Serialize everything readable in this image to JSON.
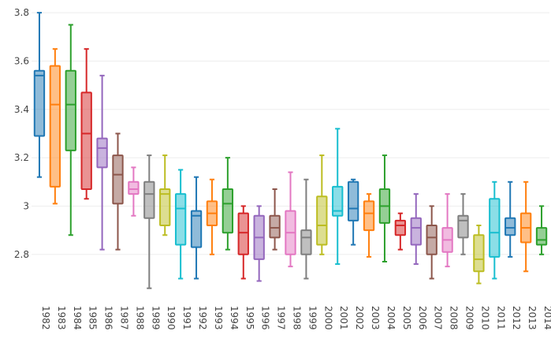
{
  "chart_data": {
    "type": "box",
    "title": "",
    "xlabel": "",
    "ylabel": "",
    "ylim": [
      2.62,
      3.82
    ],
    "yticks": [
      2.8,
      3,
      3.2,
      3.4,
      3.6,
      3.8
    ],
    "ytick_labels": [
      "2.8",
      "3",
      "3.2",
      "3.4",
      "3.6",
      "3.8"
    ],
    "grid": true,
    "legend": "none",
    "categories": [
      "1982",
      "1983",
      "1984",
      "1985",
      "1986",
      "1987",
      "1988",
      "1989",
      "1990",
      "1991",
      "1992",
      "1993",
      "1994",
      "1995",
      "1996",
      "1997",
      "1998",
      "1999",
      "2000",
      "2001",
      "2002",
      "2003",
      "2004",
      "2005",
      "2006",
      "2007",
      "2008",
      "2009",
      "2010",
      "2011",
      "2012",
      "2013",
      "2014"
    ],
    "colors": [
      "#1f77b4",
      "#ff7f0e",
      "#2ca02c",
      "#d62728",
      "#9467bd",
      "#8c564b",
      "#e377c2",
      "#7f7f7f",
      "#bcbd22",
      "#17becf"
    ],
    "boxes": [
      {
        "min": 3.12,
        "q1": 3.29,
        "median": 3.54,
        "q3": 3.56,
        "max": 3.8
      },
      {
        "min": 3.01,
        "q1": 3.08,
        "median": 3.42,
        "q3": 3.58,
        "max": 3.65
      },
      {
        "min": 2.88,
        "q1": 3.23,
        "median": 3.42,
        "q3": 3.56,
        "max": 3.75
      },
      {
        "min": 3.03,
        "q1": 3.07,
        "median": 3.3,
        "q3": 3.47,
        "max": 3.65
      },
      {
        "min": 2.82,
        "q1": 3.16,
        "median": 3.24,
        "q3": 3.28,
        "max": 3.54
      },
      {
        "min": 2.82,
        "q1": 3.01,
        "median": 3.13,
        "q3": 3.21,
        "max": 3.3
      },
      {
        "min": 2.96,
        "q1": 3.05,
        "median": 3.07,
        "q3": 3.1,
        "max": 3.16
      },
      {
        "min": 2.66,
        "q1": 2.95,
        "median": 3.05,
        "q3": 3.1,
        "max": 3.21
      },
      {
        "min": 2.88,
        "q1": 2.92,
        "median": 3.05,
        "q3": 3.07,
        "max": 3.21
      },
      {
        "min": 2.7,
        "q1": 2.84,
        "median": 2.99,
        "q3": 3.05,
        "max": 3.15
      },
      {
        "min": 2.7,
        "q1": 2.83,
        "median": 2.96,
        "q3": 2.98,
        "max": 3.12
      },
      {
        "min": 2.8,
        "q1": 2.92,
        "median": 2.97,
        "q3": 3.02,
        "max": 3.11
      },
      {
        "min": 2.82,
        "q1": 2.89,
        "median": 3.01,
        "q3": 3.07,
        "max": 3.2
      },
      {
        "min": 2.7,
        "q1": 2.8,
        "median": 2.89,
        "q3": 2.97,
        "max": 3.0
      },
      {
        "min": 2.69,
        "q1": 2.78,
        "median": 2.87,
        "q3": 2.96,
        "max": 3.0
      },
      {
        "min": 2.82,
        "q1": 2.87,
        "median": 2.91,
        "q3": 2.96,
        "max": 3.07
      },
      {
        "min": 2.75,
        "q1": 2.8,
        "median": 2.89,
        "q3": 2.98,
        "max": 3.14
      },
      {
        "min": 2.7,
        "q1": 2.8,
        "median": 2.87,
        "q3": 2.9,
        "max": 3.11
      },
      {
        "min": 2.8,
        "q1": 2.84,
        "median": 2.92,
        "q3": 3.04,
        "max": 3.21
      },
      {
        "min": 2.76,
        "q1": 2.96,
        "median": 2.98,
        "q3": 3.08,
        "max": 3.32
      },
      {
        "min": 2.84,
        "q1": 2.94,
        "median": 2.99,
        "q3": 3.1,
        "max": 3.11
      },
      {
        "min": 2.79,
        "q1": 2.9,
        "median": 2.97,
        "q3": 3.02,
        "max": 3.05
      },
      {
        "min": 2.77,
        "q1": 2.93,
        "median": 3.0,
        "q3": 3.07,
        "max": 3.21
      },
      {
        "min": 2.82,
        "q1": 2.88,
        "median": 2.92,
        "q3": 2.94,
        "max": 2.97
      },
      {
        "min": 2.76,
        "q1": 2.84,
        "median": 2.91,
        "q3": 2.95,
        "max": 3.05
      },
      {
        "min": 2.7,
        "q1": 2.8,
        "median": 2.87,
        "q3": 2.92,
        "max": 3.0
      },
      {
        "min": 2.75,
        "q1": 2.81,
        "median": 2.86,
        "q3": 2.91,
        "max": 3.05
      },
      {
        "min": 2.8,
        "q1": 2.87,
        "median": 2.94,
        "q3": 2.96,
        "max": 3.05
      },
      {
        "min": 2.68,
        "q1": 2.73,
        "median": 2.78,
        "q3": 2.88,
        "max": 2.92
      },
      {
        "min": 2.7,
        "q1": 2.79,
        "median": 2.89,
        "q3": 3.03,
        "max": 3.1
      },
      {
        "min": 2.79,
        "q1": 2.88,
        "median": 2.91,
        "q3": 2.95,
        "max": 3.1
      },
      {
        "min": 2.73,
        "q1": 2.85,
        "median": 2.91,
        "q3": 2.97,
        "max": 3.1
      },
      {
        "min": 2.8,
        "q1": 2.84,
        "median": 2.86,
        "q3": 2.91,
        "max": 3.0
      }
    ]
  }
}
